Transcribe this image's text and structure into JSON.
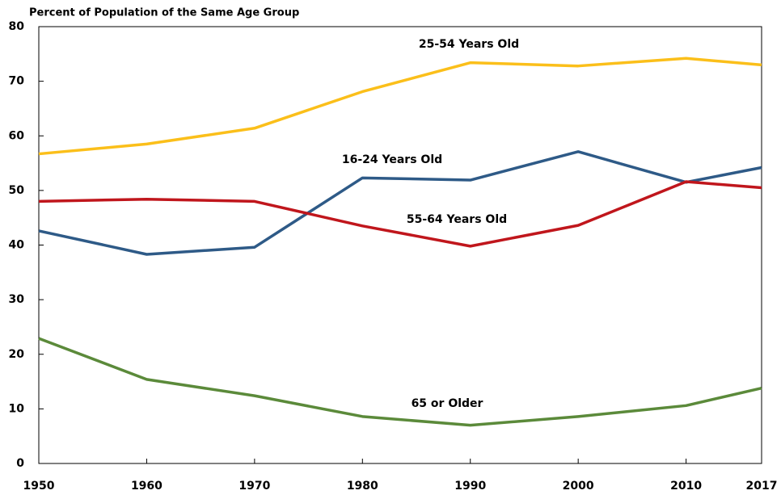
{
  "chart_data": {
    "type": "line",
    "title": "Percent of Population of the Same Age Group",
    "x": [
      1950,
      1960,
      1970,
      1980,
      1990,
      2000,
      2010,
      2017
    ],
    "xlim": [
      1950,
      2017
    ],
    "xticks": [
      1950,
      1960,
      1970,
      1980,
      1990,
      2000,
      2010,
      2017
    ],
    "ylim": [
      0,
      80
    ],
    "yticks": [
      0,
      10,
      20,
      30,
      40,
      50,
      60,
      70,
      80
    ],
    "grid": false,
    "series": [
      {
        "name": "25-54 Years Old",
        "color": "#fbbf1a",
        "values": [
          56.7,
          58.5,
          61.4,
          68.1,
          73.4,
          72.8,
          74.2,
          73.0
        ]
      },
      {
        "name": "16-24 Years Old",
        "color": "#2e5a87",
        "values": [
          42.6,
          38.3,
          39.6,
          52.3,
          51.9,
          57.1,
          51.5,
          54.2
        ]
      },
      {
        "name": "55-64 Years Old",
        "color": "#c0161c",
        "values": [
          48.0,
          48.4,
          48.0,
          43.5,
          39.8,
          43.6,
          51.6,
          50.5
        ]
      },
      {
        "name": "65 or Older",
        "color": "#5b8a3a",
        "values": [
          22.9,
          15.4,
          12.4,
          8.6,
          7.0,
          8.6,
          10.6,
          13.8
        ]
      }
    ]
  }
}
